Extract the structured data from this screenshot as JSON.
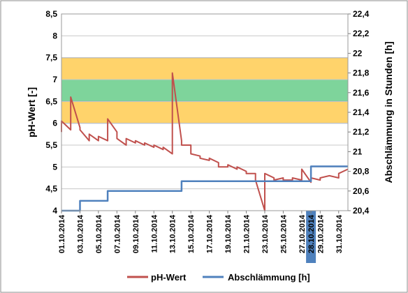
{
  "chart_data": {
    "type": "line",
    "title": "",
    "xlabel": "",
    "ylabel": "pH-Wert [-]",
    "y2label": "Abschlämmung in Stunden [h]",
    "ylim": [
      4,
      8.5
    ],
    "y2lim": [
      20.4,
      22.4
    ],
    "yticks": [
      "8,5",
      "8",
      "7,5",
      "7",
      "6,5",
      "6",
      "5,5",
      "5",
      "4,5",
      "4"
    ],
    "y2ticks": [
      "22,4",
      "22,2",
      "22",
      "21,8",
      "21,6",
      "21,4",
      "21,2",
      "21",
      "20,8",
      "20,6",
      "20,4"
    ],
    "xdomain": [
      "2014-10-01",
      "2014-11-01"
    ],
    "x_tick_labels": [
      "01.10.2014",
      "03.10.2014",
      "05.10.2014",
      "07.10.2014",
      "09.10.2014",
      "11.10.2014",
      "13.10.2014",
      "15.10.2014",
      "17.10.2014",
      "19.10.2014",
      "21.10.2014",
      "23.10.2014",
      "25.10.2014",
      "27.10.2014",
      "28.10.2014",
      "29.10.2014",
      "31.10.2014"
    ],
    "highlighted_tick": "28.10.2014",
    "bands": [
      {
        "axis": "left",
        "from": 6.0,
        "to": 7.5,
        "color": "#FFD36B"
      },
      {
        "axis": "left",
        "from": 6.5,
        "to": 7.0,
        "color": "#7ED49B"
      }
    ],
    "legend": {
      "position": "bottom"
    },
    "grid": true,
    "series": [
      {
        "name": "pH-Wert",
        "axis": "left",
        "color": "#C0504D",
        "x": [
          "2014-10-01",
          "2014-10-01",
          "2014-10-02",
          "2014-10-02",
          "2014-10-03",
          "2014-10-03",
          "2014-10-04",
          "2014-10-04",
          "2014-10-05",
          "2014-10-05",
          "2014-10-06",
          "2014-10-06",
          "2014-10-07",
          "2014-10-07",
          "2014-10-08",
          "2014-10-08",
          "2014-10-09",
          "2014-10-09",
          "2014-10-10",
          "2014-10-10",
          "2014-10-11",
          "2014-10-11",
          "2014-10-12",
          "2014-10-12",
          "2014-10-13",
          "2014-10-13",
          "2014-10-14",
          "2014-10-14",
          "2014-10-15",
          "2014-10-15",
          "2014-10-16",
          "2014-10-16",
          "2014-10-17",
          "2014-10-17",
          "2014-10-18",
          "2014-10-18",
          "2014-10-19",
          "2014-10-19",
          "2014-10-20",
          "2014-10-20",
          "2014-10-21",
          "2014-10-21",
          "2014-10-22",
          "2014-10-22",
          "2014-10-23",
          "2014-10-23",
          "2014-10-24",
          "2014-10-24",
          "2014-10-25",
          "2014-10-25",
          "2014-10-26",
          "2014-10-26",
          "2014-10-27",
          "2014-10-27",
          "2014-10-28",
          "2014-10-28",
          "2014-10-29",
          "2014-10-29",
          "2014-10-30",
          "2014-10-30",
          "2014-10-31",
          "2014-10-31",
          "2014-11-01"
        ],
        "values": [
          5.8,
          6.05,
          5.85,
          6.6,
          5.9,
          5.85,
          5.6,
          5.75,
          5.6,
          5.7,
          5.6,
          6.1,
          5.8,
          5.65,
          5.5,
          5.65,
          5.55,
          5.6,
          5.5,
          5.55,
          5.45,
          5.5,
          5.4,
          5.45,
          5.3,
          7.15,
          5.6,
          5.5,
          5.5,
          5.3,
          5.25,
          5.2,
          5.15,
          5.2,
          5.1,
          5.0,
          5.0,
          5.05,
          4.95,
          5.0,
          4.9,
          4.85,
          4.85,
          4.7,
          4.0,
          4.85,
          4.75,
          4.7,
          4.75,
          4.7,
          4.7,
          4.75,
          4.7,
          4.95,
          4.65,
          4.75,
          4.7,
          4.75,
          4.8,
          4.8,
          4.75,
          4.85,
          4.95
        ]
      },
      {
        "name": "Abschlämmung [h]",
        "axis": "right",
        "color": "#4F81BD",
        "step": true,
        "x": [
          "2014-10-01",
          "2014-10-03",
          "2014-10-06",
          "2014-10-14",
          "2014-10-22",
          "2014-10-28",
          "2014-11-01"
        ],
        "values": [
          20.4,
          20.5,
          20.6,
          20.7,
          20.7,
          20.85,
          20.85
        ]
      }
    ]
  }
}
